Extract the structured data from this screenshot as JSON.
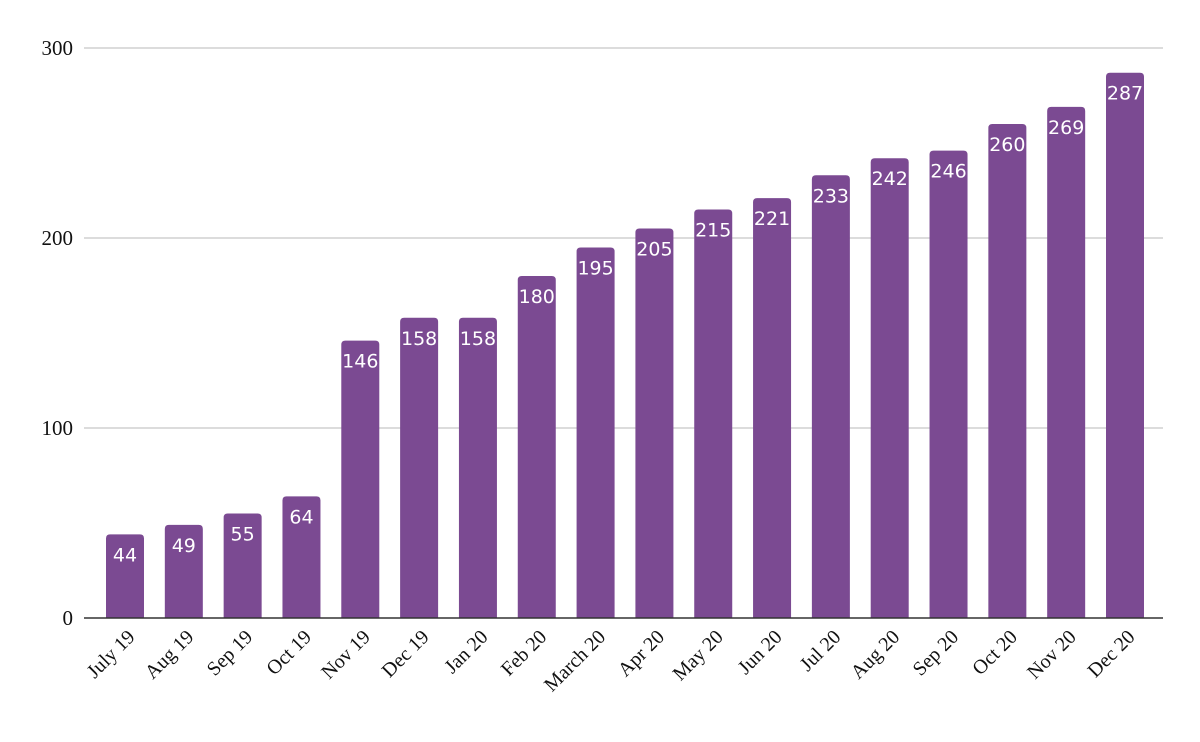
{
  "chart_data": {
    "type": "bar",
    "title": "",
    "xlabel": "",
    "ylabel": "",
    "categories": [
      "July 19",
      "Aug 19",
      "Sep 19",
      "Oct 19",
      "Nov 19",
      "Dec 19",
      "Jan 20",
      "Feb 20",
      "March 20",
      "Apr 20",
      "May 20",
      "Jun 20",
      "Jul 20",
      "Aug 20",
      "Sep 20",
      "Oct 20",
      "Nov 20",
      "Dec 20"
    ],
    "values": [
      44,
      49,
      55,
      64,
      146,
      158,
      158,
      180,
      195,
      205,
      215,
      221,
      233,
      242,
      246,
      260,
      269,
      287
    ],
    "ylim": [
      0,
      300
    ],
    "yticks": [
      0,
      100,
      200,
      300
    ],
    "grid": true,
    "legend": "none",
    "bar_color": "#7b4a92",
    "data_labels": true
  }
}
